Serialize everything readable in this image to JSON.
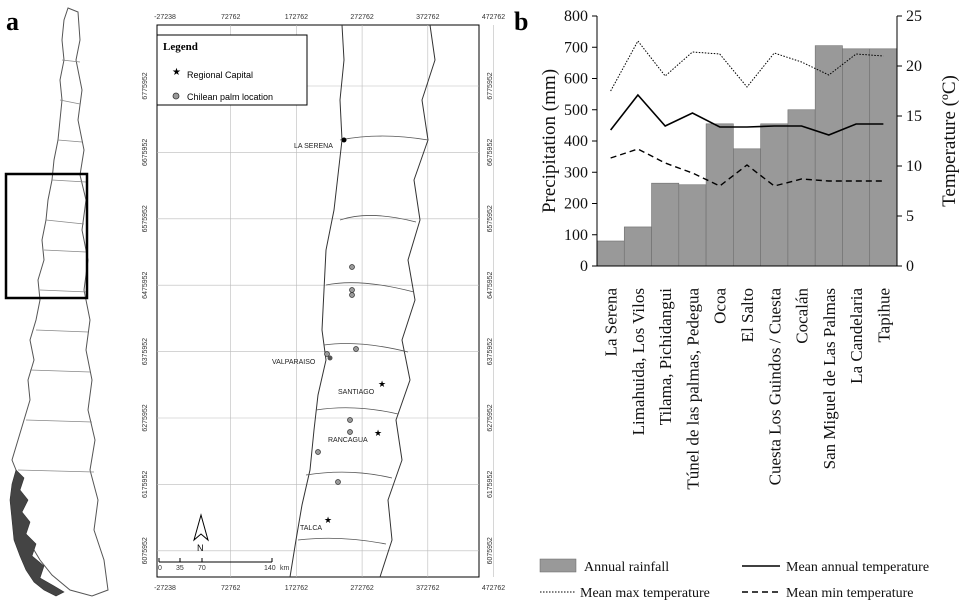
{
  "panels": {
    "a": "a",
    "b": "b"
  },
  "map": {
    "legend_title": "Legend",
    "legend_items": [
      {
        "label": "Regional Capital",
        "symbol": "star"
      },
      {
        "label": "Chilean palm location",
        "symbol": "circle"
      }
    ],
    "x_ticks": [
      "-27238",
      "72762",
      "172762",
      "272762",
      "372762",
      "472762"
    ],
    "y_ticks": [
      "6775952",
      "6675952",
      "6575952",
      "6475952",
      "6375952",
      "6275952",
      "6175952",
      "6075952",
      "5975952"
    ],
    "cities": [
      "LA SERENA",
      "VALPARAISO",
      "SANTIAGO",
      "RANCAGUA",
      "TALCA"
    ],
    "north_label": "N",
    "scale_labels": [
      "0",
      "35",
      "70",
      "140",
      "km"
    ]
  },
  "chart_data": {
    "type": "bar",
    "categories": [
      "La Serena",
      "Limahuida, Los Vilos",
      "Tilama, Pichidangui",
      "Túnel de las palmas, Pedegua",
      "Ocoa",
      "El Salto",
      "Cuesta Los Guindos / Cuesta",
      "Cocalán",
      "San Miguel de Las Palmas",
      "La Candelaria",
      "Tapihue"
    ],
    "ylabel": "Precipitation  (mm)",
    "y2label": "Temperature (ºC)",
    "ylim": [
      0,
      800
    ],
    "y2lim": [
      0,
      25
    ],
    "yticks": [
      "0",
      "100",
      "200",
      "300",
      "400",
      "500",
      "600",
      "700",
      "800"
    ],
    "y2ticks": [
      "0",
      "5",
      "10",
      "15",
      "20",
      "25"
    ],
    "series": [
      {
        "name": "Annual rainfall",
        "kind": "bar",
        "axis": "left",
        "color": "#999999",
        "values": [
          80,
          125,
          265,
          260,
          455,
          375,
          455,
          500,
          705,
          695,
          695
        ]
      },
      {
        "name": "Mean annual temperature",
        "kind": "line",
        "style": "solid",
        "axis": "right",
        "values": [
          13.6,
          17.1,
          14.0,
          15.3,
          13.9,
          13.9,
          14.0,
          14.0,
          13.1,
          14.2,
          14.2
        ]
      },
      {
        "name": "Mean max temperature",
        "kind": "line",
        "style": "dotted",
        "axis": "right",
        "values": [
          17.5,
          22.5,
          19.0,
          21.4,
          21.2,
          17.9,
          21.3,
          20.4,
          19.1,
          21.2,
          21.0
        ]
      },
      {
        "name": "Mean min temperature",
        "kind": "line",
        "style": "dashed",
        "axis": "right",
        "values": [
          10.8,
          11.7,
          10.3,
          9.3,
          8.0,
          10.1,
          8.0,
          8.7,
          8.5,
          8.5,
          8.5
        ]
      }
    ],
    "legend": "bottom",
    "grid": false
  }
}
